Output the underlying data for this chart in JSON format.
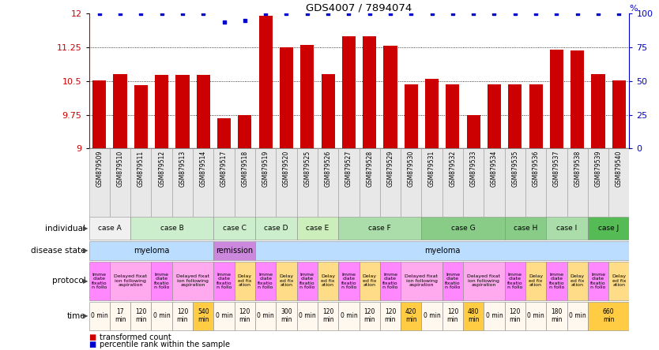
{
  "title": "GDS4007 / 7894074",
  "samples": [
    "GSM879509",
    "GSM879510",
    "GSM879511",
    "GSM879512",
    "GSM879513",
    "GSM879514",
    "GSM879517",
    "GSM879518",
    "GSM879519",
    "GSM879520",
    "GSM879525",
    "GSM879526",
    "GSM879527",
    "GSM879528",
    "GSM879529",
    "GSM879530",
    "GSM879531",
    "GSM879532",
    "GSM879533",
    "GSM879534",
    "GSM879535",
    "GSM879536",
    "GSM879537",
    "GSM879538",
    "GSM879539",
    "GSM879540"
  ],
  "bar_values": [
    10.52,
    10.65,
    10.4,
    10.63,
    10.63,
    10.63,
    9.68,
    9.75,
    11.95,
    11.25,
    11.3,
    10.65,
    11.5,
    11.5,
    11.28,
    10.42,
    10.55,
    10.42,
    9.75,
    10.42,
    10.42,
    10.42,
    11.2,
    11.18,
    10.65,
    10.52
  ],
  "percentile_values": [
    12,
    12,
    12,
    12,
    12,
    12,
    11.82,
    11.85,
    12,
    12,
    12,
    12,
    12,
    12,
    12,
    12,
    12,
    12,
    12,
    12,
    12,
    12,
    12,
    12,
    12,
    12
  ],
  "bar_color": "#cc0000",
  "dot_color": "#0000cc",
  "ylim_left": [
    9,
    12
  ],
  "yticks_left": [
    9,
    9.75,
    10.5,
    11.25,
    12
  ],
  "yticks_right": [
    0,
    25,
    50,
    75,
    100
  ],
  "ylabel_left_color": "#cc0000",
  "ylabel_right_color": "#0000cc",
  "individual_cases": [
    {
      "name": "case A",
      "start": 0,
      "end": 2,
      "color": "#f0f0f0"
    },
    {
      "name": "case B",
      "start": 2,
      "end": 6,
      "color": "#cceecc"
    },
    {
      "name": "case C",
      "start": 6,
      "end": 8,
      "color": "#cceecc"
    },
    {
      "name": "case D",
      "start": 8,
      "end": 10,
      "color": "#cceecc"
    },
    {
      "name": "case E",
      "start": 10,
      "end": 12,
      "color": "#cceebb"
    },
    {
      "name": "case F",
      "start": 12,
      "end": 16,
      "color": "#aaddaa"
    },
    {
      "name": "case G",
      "start": 16,
      "end": 20,
      "color": "#88cc88"
    },
    {
      "name": "case H",
      "start": 20,
      "end": 22,
      "color": "#88cc88"
    },
    {
      "name": "case I",
      "start": 22,
      "end": 24,
      "color": "#aaddaa"
    },
    {
      "name": "case J",
      "start": 24,
      "end": 26,
      "color": "#55bb55"
    }
  ],
  "disease_segments": [
    {
      "name": "myeloma",
      "start": 0,
      "end": 6,
      "color": "#bbddff"
    },
    {
      "name": "remission",
      "start": 6,
      "end": 8,
      "color": "#cc88dd"
    },
    {
      "name": "myeloma",
      "start": 8,
      "end": 26,
      "color": "#bbddff"
    }
  ],
  "protocol_segments": [
    {
      "name": "Imme\ndiate\nfixatio\nn follo",
      "start": 0,
      "end": 1,
      "color": "#ff88ff"
    },
    {
      "name": "Delayed fixat\nion following\naspiration",
      "start": 1,
      "end": 3,
      "color": "#ffaaee"
    },
    {
      "name": "Imme\ndiate\nfixatio\nn follo",
      "start": 3,
      "end": 4,
      "color": "#ff88ff"
    },
    {
      "name": "Delayed fixat\nion following\naspiration",
      "start": 4,
      "end": 6,
      "color": "#ffaaee"
    },
    {
      "name": "Imme\ndiate\nfixatio\nn follo",
      "start": 6,
      "end": 7,
      "color": "#ff88ff"
    },
    {
      "name": "Delay\ned fix\nation",
      "start": 7,
      "end": 8,
      "color": "#ffdd88"
    },
    {
      "name": "Imme\ndiate\nfixatio\nn follo",
      "start": 8,
      "end": 9,
      "color": "#ff88ff"
    },
    {
      "name": "Delay\ned fix\nation",
      "start": 9,
      "end": 10,
      "color": "#ffdd88"
    },
    {
      "name": "Imme\ndiate\nfixatio\nn follo",
      "start": 10,
      "end": 11,
      "color": "#ff88ff"
    },
    {
      "name": "Delay\ned fix\nation",
      "start": 11,
      "end": 12,
      "color": "#ffdd88"
    },
    {
      "name": "Imme\ndiate\nfixatio\nn follo",
      "start": 12,
      "end": 13,
      "color": "#ff88ff"
    },
    {
      "name": "Delay\ned fix\nation",
      "start": 13,
      "end": 14,
      "color": "#ffdd88"
    },
    {
      "name": "Imme\ndiate\nfixatio\nn follo",
      "start": 14,
      "end": 15,
      "color": "#ff88ff"
    },
    {
      "name": "Delayed fixat\nion following\naspiration",
      "start": 15,
      "end": 17,
      "color": "#ffaaee"
    },
    {
      "name": "Imme\ndiate\nfixatio\nn follo",
      "start": 17,
      "end": 18,
      "color": "#ff88ff"
    },
    {
      "name": "Delayed fixat\nion following\naspiration",
      "start": 18,
      "end": 20,
      "color": "#ffaaee"
    },
    {
      "name": "Imme\ndiate\nfixatio\nn follo",
      "start": 20,
      "end": 21,
      "color": "#ff88ff"
    },
    {
      "name": "Delay\ned fix\nation",
      "start": 21,
      "end": 22,
      "color": "#ffdd88"
    },
    {
      "name": "Imme\ndiate\nfixatio\nn follo",
      "start": 22,
      "end": 23,
      "color": "#ff88ff"
    },
    {
      "name": "Delay\ned fix\nation",
      "start": 23,
      "end": 24,
      "color": "#ffdd88"
    },
    {
      "name": "Imme\ndiate\nfixatio\nn follo",
      "start": 24,
      "end": 25,
      "color": "#ff88ff"
    },
    {
      "name": "Delay\ned fix\nation",
      "start": 25,
      "end": 26,
      "color": "#ffdd88"
    }
  ],
  "time_segments": [
    {
      "name": "0 min",
      "start": 0,
      "end": 1,
      "color": "#fff8ee"
    },
    {
      "name": "17\nmin",
      "start": 1,
      "end": 2,
      "color": "#fff8ee"
    },
    {
      "name": "120\nmin",
      "start": 2,
      "end": 3,
      "color": "#fff8ee"
    },
    {
      "name": "0 min",
      "start": 3,
      "end": 4,
      "color": "#fff8ee"
    },
    {
      "name": "120\nmin",
      "start": 4,
      "end": 5,
      "color": "#fff8ee"
    },
    {
      "name": "540\nmin",
      "start": 5,
      "end": 6,
      "color": "#ffcc44"
    },
    {
      "name": "0 min",
      "start": 6,
      "end": 7,
      "color": "#fff8ee"
    },
    {
      "name": "120\nmin",
      "start": 7,
      "end": 8,
      "color": "#fff8ee"
    },
    {
      "name": "0 min",
      "start": 8,
      "end": 9,
      "color": "#fff8ee"
    },
    {
      "name": "300\nmin",
      "start": 9,
      "end": 10,
      "color": "#fff8ee"
    },
    {
      "name": "0 min",
      "start": 10,
      "end": 11,
      "color": "#fff8ee"
    },
    {
      "name": "120\nmin",
      "start": 11,
      "end": 12,
      "color": "#fff8ee"
    },
    {
      "name": "0 min",
      "start": 12,
      "end": 13,
      "color": "#fff8ee"
    },
    {
      "name": "120\nmin",
      "start": 13,
      "end": 14,
      "color": "#fff8ee"
    },
    {
      "name": "120\nmin",
      "start": 14,
      "end": 15,
      "color": "#fff8ee"
    },
    {
      "name": "420\nmin",
      "start": 15,
      "end": 16,
      "color": "#ffcc44"
    },
    {
      "name": "0 min",
      "start": 16,
      "end": 17,
      "color": "#fff8ee"
    },
    {
      "name": "120\nmin",
      "start": 17,
      "end": 18,
      "color": "#fff8ee"
    },
    {
      "name": "480\nmin",
      "start": 18,
      "end": 19,
      "color": "#ffcc44"
    },
    {
      "name": "0 min",
      "start": 19,
      "end": 20,
      "color": "#fff8ee"
    },
    {
      "name": "120\nmin",
      "start": 20,
      "end": 21,
      "color": "#fff8ee"
    },
    {
      "name": "0 min",
      "start": 21,
      "end": 22,
      "color": "#fff8ee"
    },
    {
      "name": "180\nmin",
      "start": 22,
      "end": 23,
      "color": "#fff8ee"
    },
    {
      "name": "0 min",
      "start": 23,
      "end": 24,
      "color": "#fff8ee"
    },
    {
      "name": "660\nmin",
      "start": 24,
      "end": 26,
      "color": "#ffcc44"
    }
  ],
  "legend_items": [
    {
      "color": "#cc0000",
      "label": "transformed count"
    },
    {
      "color": "#0000cc",
      "label": "percentile rank within the sample"
    }
  ],
  "row_labels": [
    "individual",
    "disease state",
    "protocol",
    "time"
  ],
  "xticklabel_bg": "#e8e8e8"
}
